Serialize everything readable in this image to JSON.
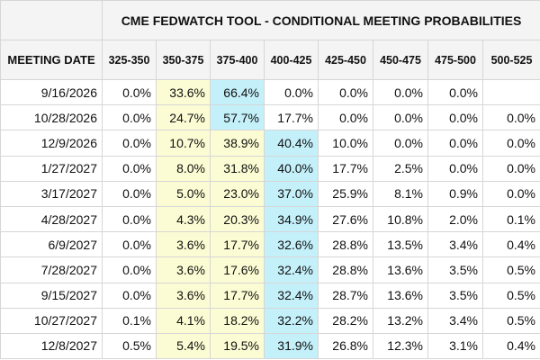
{
  "title": "CME FEDWATCH TOOL - CONDITIONAL MEETING PROBABILITIES",
  "date_header": "MEETING DATE",
  "chart_data": {
    "type": "table",
    "title": "CME FEDWATCH TOOL - CONDITIONAL MEETING PROBABILITIES",
    "columns": [
      "325-350",
      "350-375",
      "375-400",
      "400-425",
      "425-450",
      "450-475",
      "475-500",
      "500-525"
    ],
    "rows": [
      {
        "date": "9/16/2026",
        "values": [
          "0.0%",
          "33.6%",
          "66.4%",
          "0.0%",
          "0.0%",
          "0.0%",
          "0.0%",
          ""
        ],
        "highlights": [
          "",
          "yellow",
          "blue",
          "",
          "",
          "",
          "",
          ""
        ]
      },
      {
        "date": "10/28/2026",
        "values": [
          "0.0%",
          "24.7%",
          "57.7%",
          "17.7%",
          "0.0%",
          "0.0%",
          "0.0%",
          "0.0%"
        ],
        "highlights": [
          "",
          "yellow",
          "blue",
          "",
          "",
          "",
          "",
          ""
        ]
      },
      {
        "date": "12/9/2026",
        "values": [
          "0.0%",
          "10.7%",
          "38.9%",
          "40.4%",
          "10.0%",
          "0.0%",
          "0.0%",
          "0.0%"
        ],
        "highlights": [
          "",
          "yellow",
          "yellow",
          "blue",
          "",
          "",
          "",
          ""
        ]
      },
      {
        "date": "1/27/2027",
        "values": [
          "0.0%",
          "8.0%",
          "31.8%",
          "40.0%",
          "17.7%",
          "2.5%",
          "0.0%",
          "0.0%"
        ],
        "highlights": [
          "",
          "yellow",
          "yellow",
          "blue",
          "",
          "",
          "",
          ""
        ]
      },
      {
        "date": "3/17/2027",
        "values": [
          "0.0%",
          "5.0%",
          "23.0%",
          "37.0%",
          "25.9%",
          "8.1%",
          "0.9%",
          "0.0%"
        ],
        "highlights": [
          "",
          "yellow",
          "yellow",
          "blue",
          "",
          "",
          "",
          ""
        ]
      },
      {
        "date": "4/28/2027",
        "values": [
          "0.0%",
          "4.3%",
          "20.3%",
          "34.9%",
          "27.6%",
          "10.8%",
          "2.0%",
          "0.1%"
        ],
        "highlights": [
          "",
          "yellow",
          "yellow",
          "blue",
          "",
          "",
          "",
          ""
        ]
      },
      {
        "date": "6/9/2027",
        "values": [
          "0.0%",
          "3.6%",
          "17.7%",
          "32.6%",
          "28.8%",
          "13.5%",
          "3.4%",
          "0.4%"
        ],
        "highlights": [
          "",
          "yellow",
          "yellow",
          "blue",
          "",
          "",
          "",
          ""
        ]
      },
      {
        "date": "7/28/2027",
        "values": [
          "0.0%",
          "3.6%",
          "17.6%",
          "32.4%",
          "28.8%",
          "13.6%",
          "3.5%",
          "0.5%"
        ],
        "highlights": [
          "",
          "yellow",
          "yellow",
          "blue",
          "",
          "",
          "",
          ""
        ]
      },
      {
        "date": "9/15/2027",
        "values": [
          "0.0%",
          "3.6%",
          "17.7%",
          "32.4%",
          "28.7%",
          "13.6%",
          "3.5%",
          "0.5%"
        ],
        "highlights": [
          "",
          "yellow",
          "yellow",
          "blue",
          "",
          "",
          "",
          ""
        ]
      },
      {
        "date": "10/27/2027",
        "values": [
          "0.1%",
          "4.1%",
          "18.2%",
          "32.2%",
          "28.2%",
          "13.2%",
          "3.4%",
          "0.5%"
        ],
        "highlights": [
          "",
          "yellow",
          "yellow",
          "blue",
          "",
          "",
          "",
          ""
        ]
      },
      {
        "date": "12/8/2027",
        "values": [
          "0.5%",
          "5.4%",
          "19.5%",
          "31.9%",
          "26.8%",
          "12.3%",
          "3.1%",
          "0.4%"
        ],
        "highlights": [
          "",
          "yellow",
          "yellow",
          "blue",
          "",
          "",
          "",
          ""
        ]
      }
    ]
  }
}
